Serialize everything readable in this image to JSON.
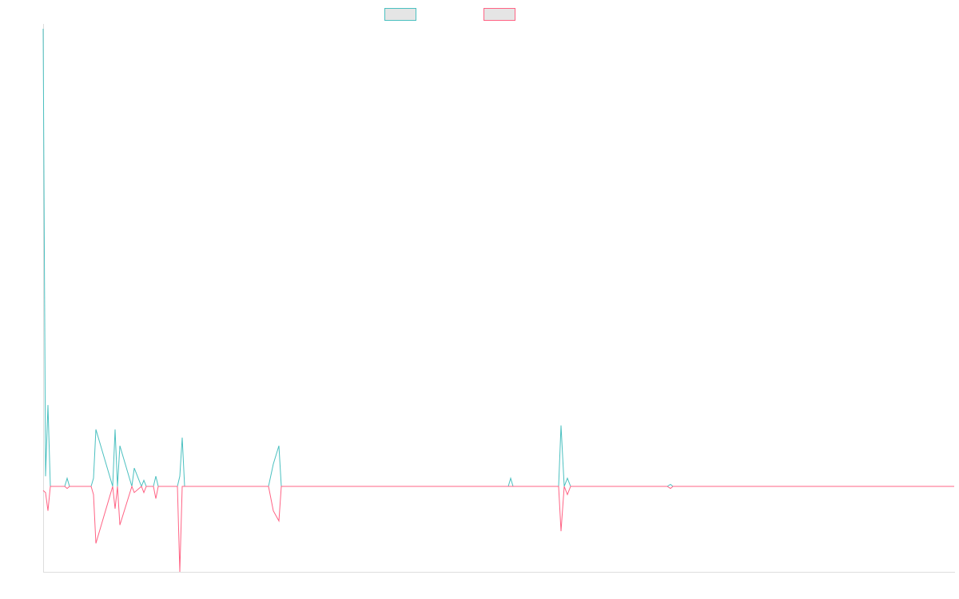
{
  "chart_data": {
    "type": "line",
    "title": "",
    "xlabel": "",
    "ylabel": "",
    "legend_position": "top-center",
    "grid": false,
    "xlim": [
      0,
      228
    ],
    "ylim": [
      -42,
      225
    ],
    "baseline": 0,
    "series": [
      {
        "color": "#4bc0c0",
        "legend_fill": "#e5e5e5",
        "x": [
          0,
          0.6,
          1.2,
          1.8,
          2.4,
          5.4,
          6,
          6.6,
          12,
          12.6,
          13.2,
          17.4,
          18,
          18.6,
          19.2,
          22.2,
          22.8,
          24.6,
          25.2,
          25.8,
          26.4,
          27,
          27.6,
          28.2,
          28.8,
          33.6,
          34.2,
          34.8,
          35.4,
          36.2,
          56.4,
          57.6,
          59,
          59.6,
          94.8,
          96.8,
          111,
          111.8,
          116.4,
          117,
          117.6,
          129,
          129.6,
          130.4,
          131.2,
          132,
          143,
          146.2,
          156.2,
          157,
          157.6,
          163,
          228
        ],
        "values": [
          225,
          5,
          40,
          0,
          0,
          0,
          4,
          0,
          0,
          4,
          28,
          0,
          28,
          0,
          20,
          0,
          9,
          0,
          3,
          0,
          0,
          0,
          0,
          5,
          0,
          0,
          5,
          24,
          0,
          0,
          0,
          11,
          20,
          0,
          0,
          0,
          0,
          0,
          0,
          4,
          0,
          0,
          30,
          0,
          4,
          0,
          0,
          0,
          0,
          1,
          0,
          0,
          0
        ]
      },
      {
        "color": "#ff6384",
        "legend_fill": "#e5e5e5",
        "x": [
          0,
          0.6,
          1.2,
          1.8,
          2.4,
          5.4,
          6,
          6.6,
          12,
          12.6,
          13.2,
          17.4,
          18,
          18.6,
          19.2,
          22.2,
          22.8,
          24.6,
          25.2,
          25.8,
          26.4,
          27,
          27.6,
          28.2,
          28.8,
          33.6,
          34.2,
          34.8,
          35.4,
          36.2,
          56.4,
          57.6,
          59,
          59.6,
          94.8,
          96.8,
          111,
          111.8,
          116.4,
          117,
          117.6,
          129,
          129.6,
          130.4,
          131.2,
          132,
          143,
          146.2,
          156.2,
          157,
          157.6,
          163,
          228
        ],
        "values": [
          -2,
          -3,
          -12,
          0,
          0,
          0,
          -1,
          0,
          0,
          -4,
          -28,
          0,
          -11,
          0,
          -19,
          0,
          -3,
          0,
          -3,
          0,
          0,
          0,
          0,
          -6,
          0,
          0,
          -42,
          0,
          0,
          0,
          0,
          -12,
          -17,
          0,
          0,
          0,
          0,
          0,
          0,
          0,
          0,
          0,
          -22,
          0,
          -4,
          0,
          0,
          0,
          0,
          -1,
          0,
          0,
          0
        ]
      }
    ]
  }
}
